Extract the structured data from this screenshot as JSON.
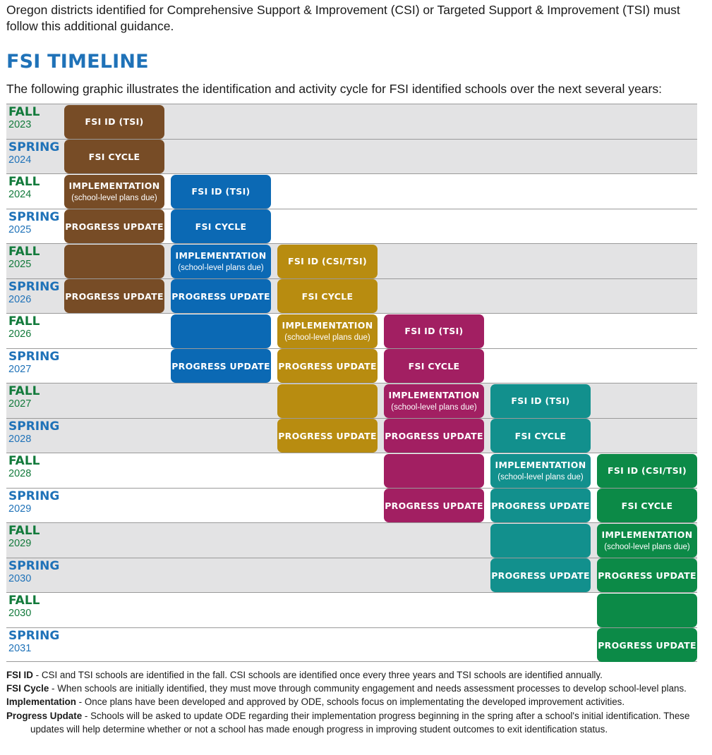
{
  "intro": "Oregon districts identified for Comprehensive Support & Improvement (CSI) or Targeted Support & Improvement (TSI) must follow this additional guidance.",
  "title": "FSI TIMELINE",
  "subtitle": "The following graphic illustrates the identification and activity cycle for FSI identified schools over the next several years:",
  "rows": [
    {
      "season": "FALL",
      "year": "2023"
    },
    {
      "season": "SPRING",
      "year": "2024"
    },
    {
      "season": "FALL",
      "year": "2024"
    },
    {
      "season": "SPRING",
      "year": "2025"
    },
    {
      "season": "FALL",
      "year": "2025"
    },
    {
      "season": "SPRING",
      "year": "2026"
    },
    {
      "season": "FALL",
      "year": "2026"
    },
    {
      "season": "SPRING",
      "year": "2027"
    },
    {
      "season": "FALL",
      "year": "2027"
    },
    {
      "season": "SPRING",
      "year": "2028"
    },
    {
      "season": "FALL",
      "year": "2028"
    },
    {
      "season": "SPRING",
      "year": "2029"
    },
    {
      "season": "FALL",
      "year": "2029"
    },
    {
      "season": "SPRING",
      "year": "2030"
    },
    {
      "season": "FALL",
      "year": "2030"
    },
    {
      "season": "SPRING",
      "year": "2031"
    }
  ],
  "cohorts": [
    {
      "color": "#774c26",
      "start_row": 0,
      "cells": [
        {
          "label": "FSI ID (TSI)",
          "note": ""
        },
        {
          "label": "FSI CYCLE",
          "note": ""
        },
        {
          "label": "IMPLEMENTATION",
          "note": "(school-level plans due)"
        },
        {
          "label": "PROGRESS UPDATE",
          "note": ""
        },
        {
          "label": "",
          "note": ""
        },
        {
          "label": "PROGRESS UPDATE",
          "note": ""
        }
      ]
    },
    {
      "color": "#0b69b4",
      "start_row": 2,
      "cells": [
        {
          "label": "FSI ID (TSI)",
          "note": ""
        },
        {
          "label": "FSI CYCLE",
          "note": ""
        },
        {
          "label": "IMPLEMENTATION",
          "note": "(school-level plans due)"
        },
        {
          "label": "PROGRESS UPDATE",
          "note": ""
        },
        {
          "label": "",
          "note": ""
        },
        {
          "label": "PROGRESS UPDATE",
          "note": ""
        }
      ]
    },
    {
      "color": "#b88c10",
      "start_row": 4,
      "cells": [
        {
          "label": "FSI ID (CSI/TSI)",
          "note": ""
        },
        {
          "label": "FSI CYCLE",
          "note": ""
        },
        {
          "label": "IMPLEMENTATION",
          "note": "(school-level plans due)"
        },
        {
          "label": "PROGRESS UPDATE",
          "note": ""
        },
        {
          "label": "",
          "note": ""
        },
        {
          "label": "PROGRESS UPDATE",
          "note": ""
        }
      ]
    },
    {
      "color": "#a21f62",
      "start_row": 6,
      "cells": [
        {
          "label": "FSI ID (TSI)",
          "note": ""
        },
        {
          "label": "FSI CYCLE",
          "note": ""
        },
        {
          "label": "IMPLEMENTATION",
          "note": "(school-level plans due)"
        },
        {
          "label": "PROGRESS UPDATE",
          "note": ""
        },
        {
          "label": "",
          "note": ""
        },
        {
          "label": "PROGRESS UPDATE",
          "note": ""
        }
      ]
    },
    {
      "color": "#12908d",
      "start_row": 8,
      "cells": [
        {
          "label": "FSI ID (TSI)",
          "note": ""
        },
        {
          "label": "FSI CYCLE",
          "note": ""
        },
        {
          "label": "IMPLEMENTATION",
          "note": "(school-level plans due)"
        },
        {
          "label": "PROGRESS UPDATE",
          "note": ""
        },
        {
          "label": "",
          "note": ""
        },
        {
          "label": "PROGRESS UPDATE",
          "note": ""
        }
      ]
    },
    {
      "color": "#0c8a47",
      "start_row": 10,
      "cells": [
        {
          "label": "FSI ID (CSI/TSI)",
          "note": ""
        },
        {
          "label": "FSI CYCLE",
          "note": ""
        },
        {
          "label": "IMPLEMENTATION",
          "note": "(school-level plans due)"
        },
        {
          "label": "PROGRESS UPDATE",
          "note": ""
        },
        {
          "label": "",
          "note": ""
        },
        {
          "label": "PROGRESS UPDATE",
          "note": ""
        }
      ]
    }
  ],
  "legend": [
    {
      "term": "FSI ID",
      "text": " - CSI and TSI schools are identified in the fall. CSI schools are identified once every three years and TSI schools are identified annually."
    },
    {
      "term": "FSI Cycle",
      "text": " - When schools are initially identified, they must move through community engagement and needs assessment processes to develop school-level plans."
    },
    {
      "term": "Implementation",
      "text": " - Once plans have been developed and approved by ODE, schools focus on implementating the developed improvement activities."
    },
    {
      "term": "Progress Update",
      "text": " - Schools will be asked to update ODE regarding their implementation progress beginning in the spring after a school's initial identification. These updates will help determine whether or not a school has made enough progress in improving student outcomes to exit identification status."
    }
  ]
}
